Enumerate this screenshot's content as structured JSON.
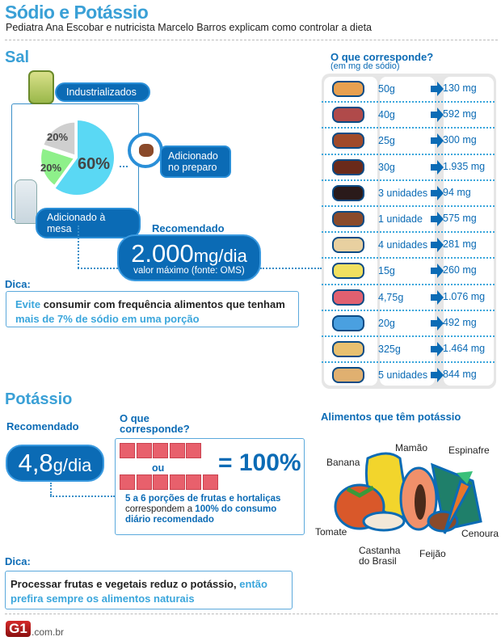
{
  "header": {
    "title": "Sódio e Potássio",
    "subtitle": "Pediatra Ana Escobar e nutricista Marcelo Barros explicam como controlar a dieta"
  },
  "sal": {
    "title": "Sal",
    "sources": [
      {
        "label": "Adicionado no preparo",
        "percent": "60%",
        "value": 60,
        "color": "#5ad8f4",
        "icon": "plate-icon"
      },
      {
        "label": "Adicionado à mesa",
        "percent": "20%",
        "value": 20,
        "color": "#8ef08a",
        "icon": "salt-shaker-icon"
      },
      {
        "label": "Industrializados",
        "percent": "20%",
        "value": 20,
        "color": "#cfcfcf",
        "icon": "jar-icon"
      }
    ],
    "preparo_line1": "Adicionado",
    "preparo_line2": "no preparo",
    "recommended_label": "Recomendado",
    "recommended_value": "2.000",
    "recommended_unit": "mg/dia",
    "recommended_note": "valor máximo (fonte: OMS)",
    "tip_label": "Dica:",
    "tip_parts": [
      "Evite",
      " consumir com frequência alimentos que tenham ",
      "mais de 7% de sódio em uma porção"
    ]
  },
  "table": {
    "title": "O que corresponde?",
    "subtitle": "(em mg de sódio)",
    "rows": [
      {
        "icon": "bread-icon",
        "amount": "50g",
        "sodium": "130 mg"
      },
      {
        "icon": "salami-icon",
        "amount": "40g",
        "sodium": "592 mg"
      },
      {
        "icon": "sausage-fork-icon",
        "amount": "25g",
        "sodium": "300 mg"
      },
      {
        "icon": "dried-meat-icon",
        "amount": "30g",
        "sodium": "1.935 mg"
      },
      {
        "icon": "cookie-icon",
        "amount": "3 unidades",
        "sodium": "94 mg"
      },
      {
        "icon": "chocolate-bar-icon",
        "amount": "1 unidade",
        "sodium": "575 mg"
      },
      {
        "icon": "cracker-icon",
        "amount": "4 unidades",
        "sodium": "281 mg"
      },
      {
        "icon": "mustard-jar-icon",
        "amount": "15g",
        "sodium": "260 mg"
      },
      {
        "icon": "seasoning-packet-icon",
        "amount": "4,75g",
        "sodium": "1.076 mg"
      },
      {
        "icon": "soup-bowl-icon",
        "amount": "20g",
        "sodium": "492 mg"
      },
      {
        "icon": "lasagna-icon",
        "amount": "325g",
        "sodium": "1.464 mg"
      },
      {
        "icon": "cheese-bread-icon",
        "amount": "5 unidades",
        "sodium": "844 mg"
      }
    ]
  },
  "potassio": {
    "title": "Potássio",
    "recommended_label": "Recomendado",
    "recommended_value": "4,8",
    "recommended_unit": "g/dia",
    "corresponde_line1": "O que",
    "corresponde_line2": "corresponde?",
    "portions_a": 5,
    "portions_b": 6,
    "or": "ou",
    "equals": "= 100%",
    "desc_parts": [
      "5 a 6 porções de frutas e hortaliças",
      "correspondem a ",
      "100% do consumo",
      "diário recomendado"
    ],
    "foods_title": "Alimentos que têm potássio",
    "foods": {
      "banana": "Banana",
      "mamao": "Mamão",
      "espinafre": "Espinafre",
      "tomate": "Tomate",
      "castanha1": "Castanha",
      "castanha2": "do Brasil",
      "feijao": "Feijão",
      "cenoura": "Cenoura"
    },
    "tip_label": "Dica:",
    "tip_parts": [
      "Processar frutas e vegetais reduz o potássio, ",
      "então prefira sempre os alimentos naturais"
    ]
  },
  "footer": {
    "logo": "G1",
    "domain": ".com.br"
  }
}
